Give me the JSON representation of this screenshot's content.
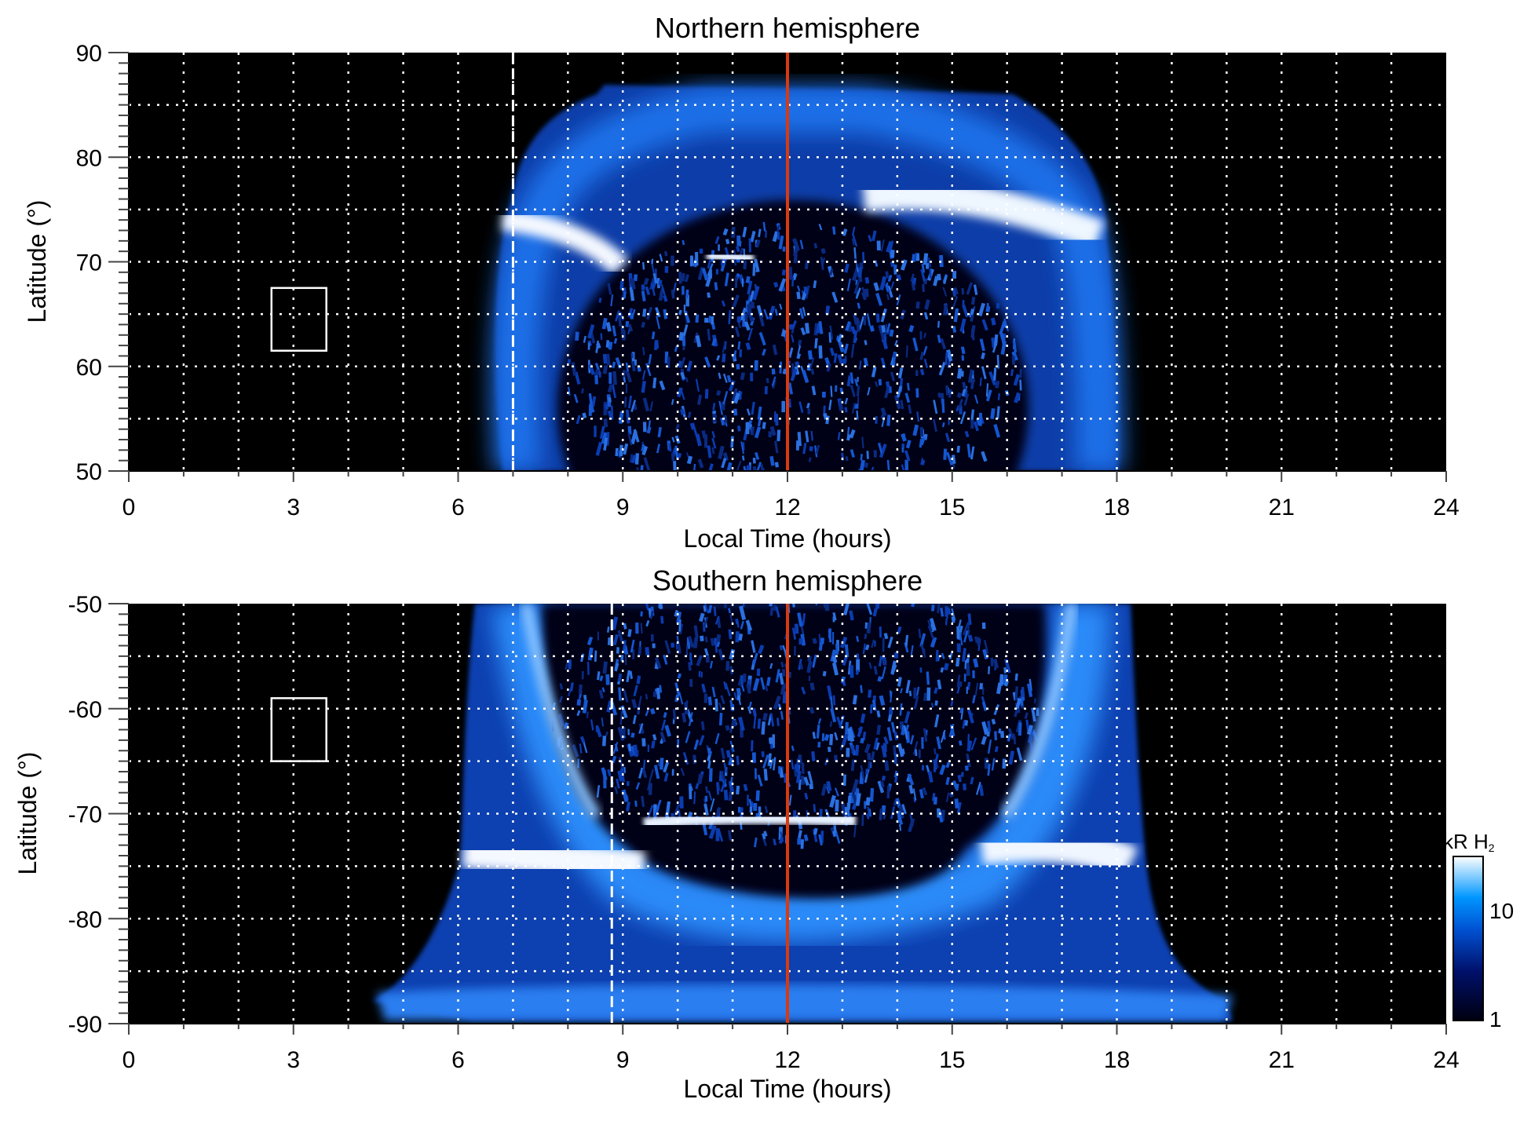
{
  "chart_data": [
    {
      "type": "heatmap",
      "title": "Northern hemisphere",
      "xlabel": "Local Time (hours)",
      "ylabel": "Latitude (°)",
      "xlim": [
        0,
        24
      ],
      "ylim": [
        50,
        90
      ],
      "xticks": [
        "0",
        "3",
        "6",
        "9",
        "12",
        "15",
        "18",
        "21",
        "24"
      ],
      "yticks": [
        "50",
        "60",
        "70",
        "80",
        "90"
      ],
      "grid": true,
      "noon_line_hour": 12,
      "dashed_line_hour": 7,
      "box": {
        "x": [
          2.6,
          3.6
        ],
        "y": [
          61.5,
          67.5
        ]
      },
      "emission": {
        "outer_lt": [
          6.6,
          18.0
        ],
        "outer_top_lat": 87,
        "dark_oval_top_lat": 73
      }
    },
    {
      "type": "heatmap",
      "title": "Southern hemisphere",
      "xlabel": "Local Time (hours)",
      "ylabel": "Latitude (°)",
      "xlim": [
        0,
        24
      ],
      "ylim": [
        -90,
        -50
      ],
      "xticks": [
        "0",
        "3",
        "6",
        "9",
        "12",
        "15",
        "18",
        "21",
        "24"
      ],
      "yticks": [
        "-90",
        "-80",
        "-70",
        "-60",
        "-50"
      ],
      "grid": true,
      "noon_line_hour": 12,
      "dashed_line_hour": 8.8,
      "box": {
        "x": [
          2.6,
          3.6
        ],
        "y": [
          -65,
          -59
        ]
      },
      "emission": {
        "outer_lt": [
          4.5,
          20.2
        ],
        "dark_oval_bottom_lat": -79.5
      }
    }
  ],
  "colorbar": {
    "label": "kR H",
    "label_sub": "2",
    "scale": "log",
    "range": [
      1,
      30
    ],
    "ticks": [
      "10",
      "1"
    ],
    "colors": [
      "#000010",
      "#00106a",
      "#0050d0",
      "#0096ff",
      "#ffffff"
    ]
  },
  "colors": {
    "noon_line": "#d83a10",
    "grid": "#ffffff",
    "background": "#000000"
  }
}
